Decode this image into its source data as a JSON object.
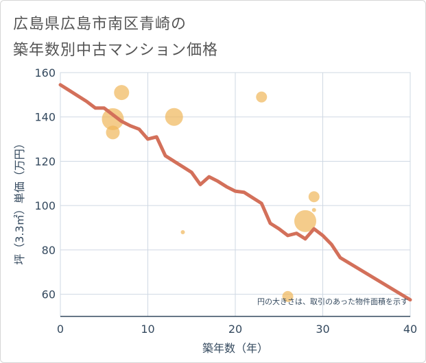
{
  "title_lines": [
    "広島県広島市南区青崎の",
    "築年数別中古マンション価格"
  ],
  "chart_data": {
    "type": "scatter+line",
    "xlabel": "築年数（年）",
    "ylabel": "坪（3.3㎡）単価（万円）",
    "xlim": [
      0,
      40
    ],
    "ylim": [
      50,
      160
    ],
    "xticks": [
      0,
      10,
      20,
      30,
      40
    ],
    "yticks": [
      60,
      80,
      100,
      120,
      140,
      160
    ],
    "grid": true,
    "note": "円の大きさは、取引のあった物件面積を示す",
    "colors": {
      "bubble": "#f0b65a",
      "line": "#d3705a",
      "grid": "#cfd8e3",
      "axis": "#34495e"
    },
    "bubbles": [
      {
        "x": 6,
        "y": 139,
        "size": 16
      },
      {
        "x": 6,
        "y": 133,
        "size": 10
      },
      {
        "x": 7,
        "y": 151,
        "size": 11
      },
      {
        "x": 13,
        "y": 140,
        "size": 13
      },
      {
        "x": 14,
        "y": 88,
        "size": 3
      },
      {
        "x": 23,
        "y": 149,
        "size": 8
      },
      {
        "x": 26,
        "y": 59,
        "size": 8
      },
      {
        "x": 28,
        "y": 93,
        "size": 16
      },
      {
        "x": 29,
        "y": 104,
        "size": 8
      },
      {
        "x": 29,
        "y": 98,
        "size": 3
      }
    ],
    "trend_line": {
      "x": [
        0,
        1,
        2,
        3,
        4,
        5,
        6,
        7,
        8,
        9,
        10,
        11,
        12,
        13,
        14,
        15,
        16,
        17,
        18,
        19,
        20,
        21,
        22,
        23,
        24,
        25,
        26,
        27,
        28,
        29,
        30,
        31,
        32,
        40
      ],
      "y": [
        154.5,
        152,
        149.5,
        147,
        144,
        144,
        141,
        138,
        136,
        134.5,
        130,
        131,
        122.5,
        120,
        117.5,
        115,
        109.5,
        113,
        111,
        108.5,
        106.5,
        106,
        103.5,
        101,
        92,
        89.5,
        86.5,
        87.5,
        85,
        89.5,
        86.5,
        82.5,
        76.5,
        57.5
      ]
    }
  }
}
